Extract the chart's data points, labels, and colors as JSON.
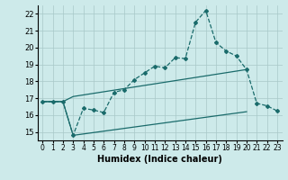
{
  "xlabel": "Humidex (Indice chaleur)",
  "bg_color": "#cdeaea",
  "line_color": "#1a6b6b",
  "xlim": [
    -0.5,
    23.5
  ],
  "ylim": [
    14.5,
    22.5
  ],
  "yticks": [
    15,
    16,
    17,
    18,
    19,
    20,
    21,
    22
  ],
  "xticks": [
    0,
    1,
    2,
    3,
    4,
    5,
    6,
    7,
    8,
    9,
    10,
    11,
    12,
    13,
    14,
    15,
    16,
    17,
    18,
    19,
    20,
    21,
    22,
    23
  ],
  "line1_x": [
    0,
    1,
    2,
    3,
    4,
    5,
    6,
    7,
    8,
    9,
    10,
    11,
    12,
    13,
    14,
    15,
    16,
    17,
    18,
    19,
    20,
    21,
    22,
    23
  ],
  "line1_y": [
    16.8,
    16.8,
    16.8,
    14.8,
    16.4,
    16.3,
    16.15,
    17.35,
    17.5,
    18.1,
    18.5,
    18.9,
    18.8,
    19.4,
    19.35,
    21.5,
    22.2,
    20.3,
    19.8,
    19.5,
    18.7,
    16.7,
    16.55,
    16.25
  ],
  "line2_x": [
    0,
    2,
    3,
    20
  ],
  "line2_y": [
    16.8,
    16.8,
    17.1,
    18.7
  ],
  "line3_x": [
    0,
    2,
    3,
    20
  ],
  "line3_y": [
    16.8,
    16.8,
    14.8,
    16.2
  ]
}
